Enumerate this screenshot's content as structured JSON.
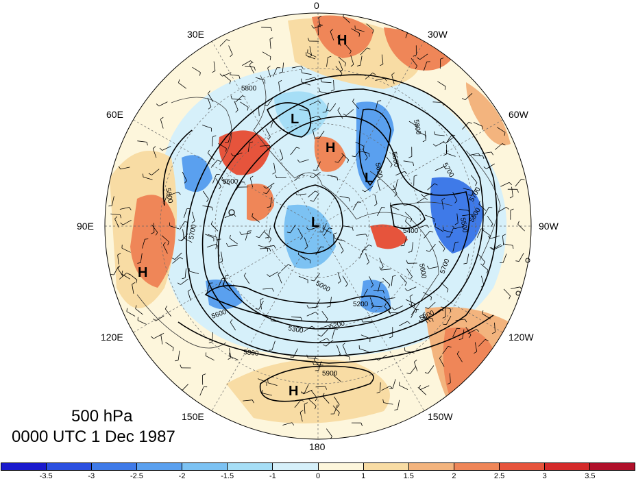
{
  "map": {
    "level": "500 hPa",
    "timestamp": "0000 UTC 1 Dec 1987",
    "longitude_labels": [
      "0",
      "30W",
      "60W",
      "90W",
      "120W",
      "150W",
      "180",
      "150E",
      "120E",
      "90E",
      "60E",
      "30E"
    ],
    "contour_labels": [
      "5800",
      "5600",
      "5800",
      "5600",
      "5700",
      "5700",
      "5800",
      "5700",
      "5500",
      "5400",
      "5600",
      "5700",
      "5600",
      "5600",
      "5000",
      "5300",
      "5200",
      "5200",
      "5800",
      "5800",
      "5900",
      "5800"
    ],
    "pressure_centers": [
      "H",
      "L",
      "H",
      "L",
      "L",
      "H",
      "H"
    ],
    "colors": {
      "land_outline": "#333333",
      "contour": "#000000",
      "background": "#ffffff"
    }
  },
  "colorbar": {
    "labels": [
      "-3.5",
      "-3",
      "-2.5",
      "-2",
      "-1.5",
      "-1",
      "0",
      "1",
      "1.5",
      "2",
      "2.5",
      "3",
      "3.5"
    ],
    "colors": [
      "#1a1acd",
      "#2b4fe0",
      "#3f7ae8",
      "#5aa0ef",
      "#7cc2f3",
      "#a6def6",
      "#d6f0fa",
      "#fdf6dc",
      "#f8dca4",
      "#f3b47e",
      "#ef8658",
      "#e6543c",
      "#d42a2a",
      "#b0102a"
    ]
  }
}
